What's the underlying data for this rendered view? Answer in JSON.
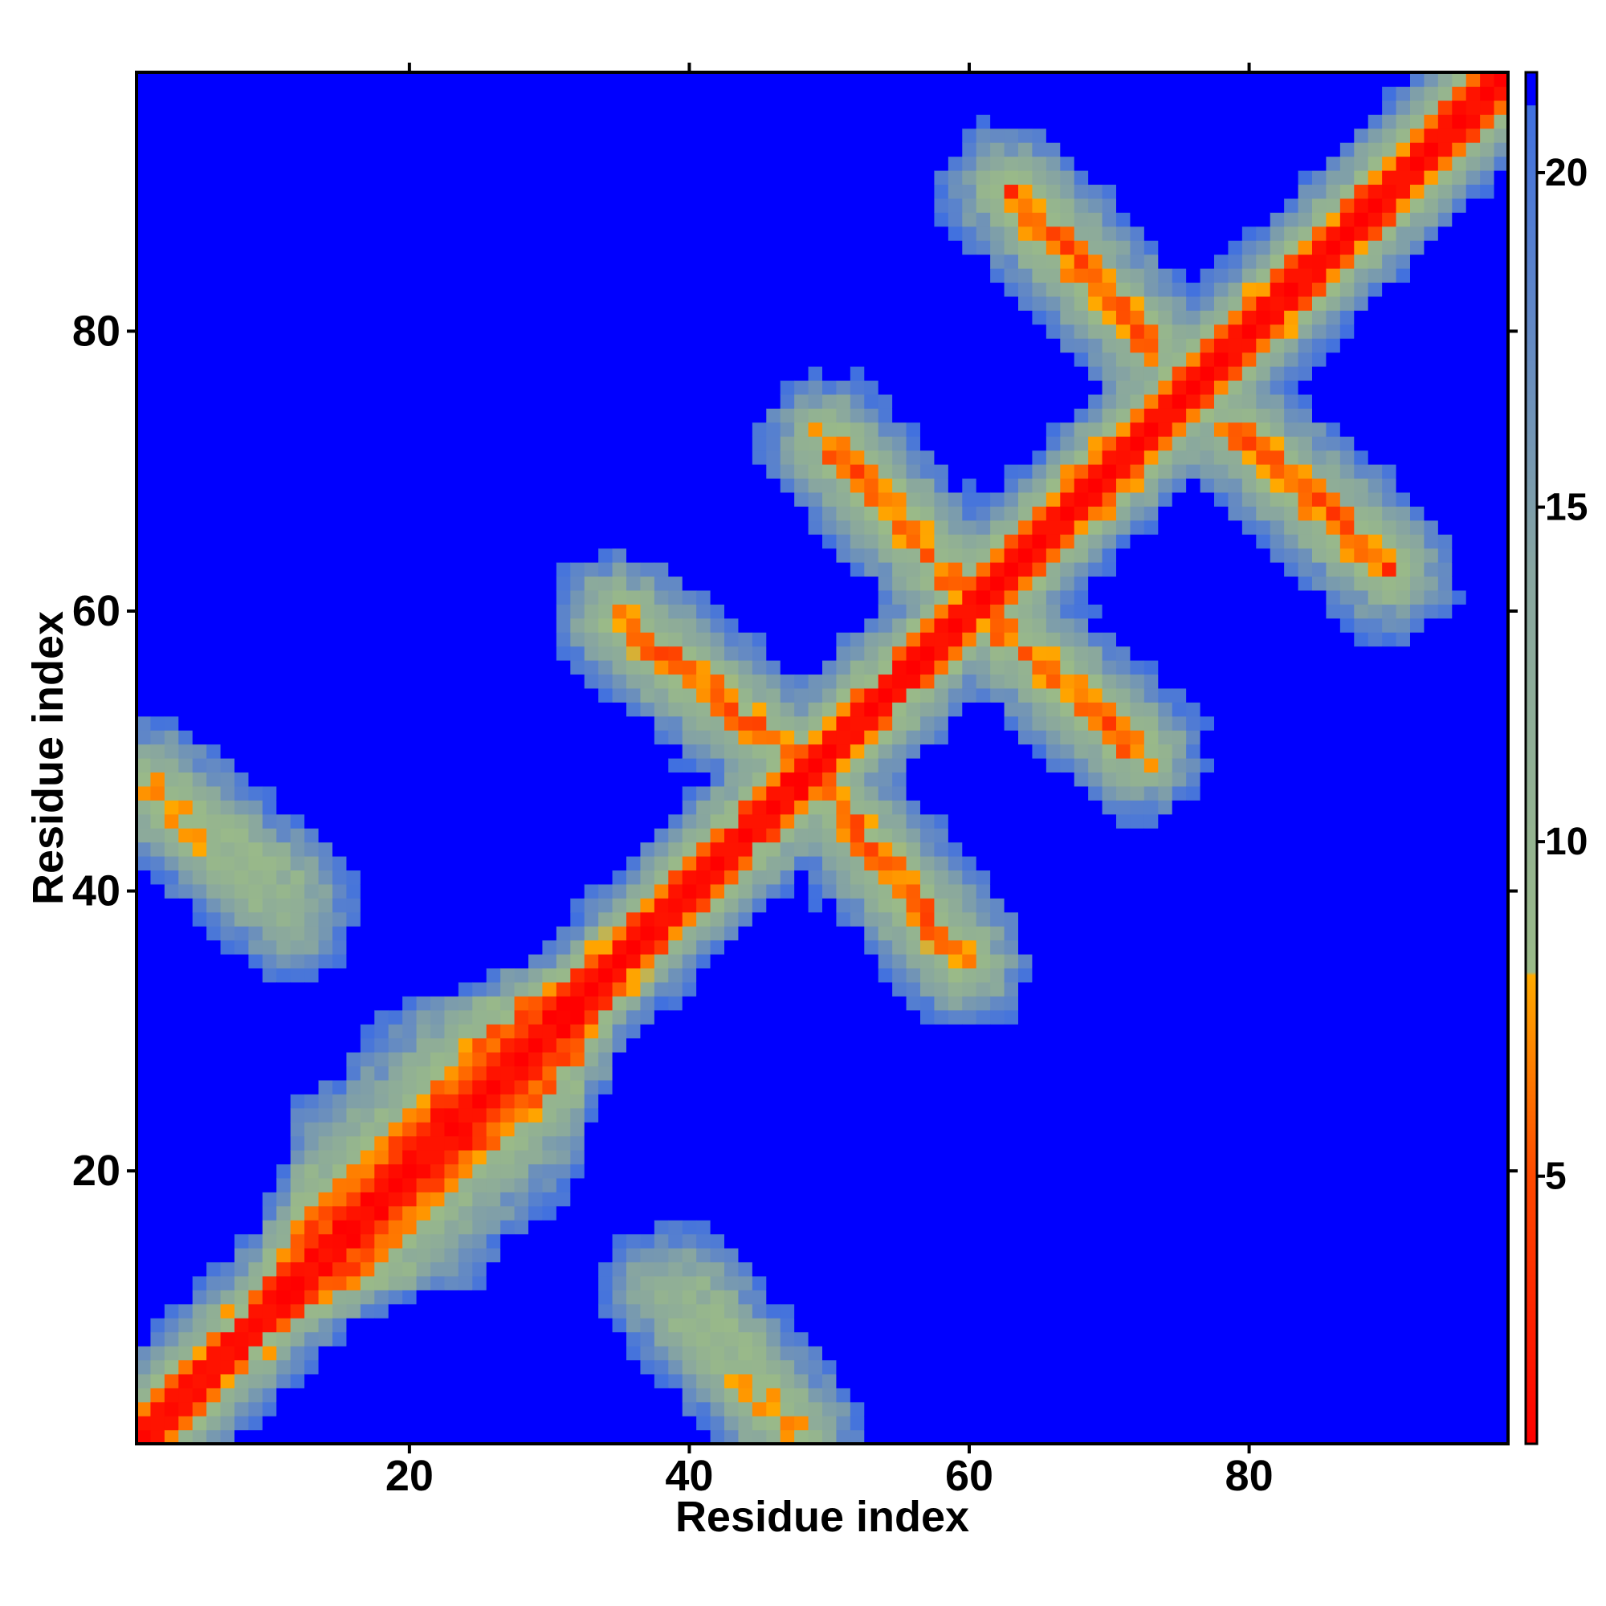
{
  "chart_data": {
    "type": "heatmap",
    "title": "",
    "xlabel": "Residue index",
    "ylabel": "Residue index",
    "n_residues": 98,
    "xlim": [
      1,
      98
    ],
    "ylim": [
      1,
      98
    ],
    "x_ticks": [
      20,
      40,
      60,
      80
    ],
    "y_ticks": [
      20,
      40,
      60,
      80
    ],
    "z_range": [
      1,
      21.5
    ],
    "colorbar": {
      "ticks": [
        5,
        10,
        15,
        20
      ],
      "stops": [
        {
          "value": 1.0,
          "color": "#ff0000"
        },
        {
          "value": 5.0,
          "color": "#ff4a00"
        },
        {
          "value": 8.0,
          "color": "#ffaa00"
        },
        {
          "value": 8.05,
          "color": "#9aba88"
        },
        {
          "value": 14.0,
          "color": "#88a6a0"
        },
        {
          "value": 18.0,
          "color": "#5f86c8"
        },
        {
          "value": 21.0,
          "color": "#4070e0"
        },
        {
          "value": 21.01,
          "color": "#0000ff"
        }
      ]
    },
    "cutoff_color": "#0000ff",
    "description_of_pattern": {
      "diagonal": "self distance, values near 0 (red) along i=j",
      "contact_bands": [
        {
          "from": [
            12,
            12
          ],
          "to": [
            32,
            32
          ],
          "offset": 2,
          "kind": "helix-like widening near diagonal"
        },
        {
          "from": [
            35,
            60
          ],
          "to": [
            48,
            49
          ],
          "kind": "anti-parallel pairing"
        },
        {
          "from": [
            49,
            48
          ],
          "to": [
            59,
            35
          ],
          "kind": "anti-parallel pairing"
        },
        {
          "from": [
            62,
            59
          ],
          "to": [
            72,
            50
          ],
          "kind": "anti-parallel pairing"
        },
        {
          "from": [
            50,
            72
          ],
          "to": [
            59,
            62
          ],
          "kind": "anti-parallel pairing"
        },
        {
          "from": [
            63,
            90
          ],
          "to": [
            73,
            79
          ],
          "kind": "anti-parallel pairing"
        },
        {
          "from": [
            79,
            73
          ],
          "to": [
            90,
            63
          ],
          "kind": "anti-parallel pairing"
        },
        {
          "from": [
            1,
            47
          ],
          "to": [
            12,
            36
          ],
          "kind": "long-range pairing"
        },
        {
          "from": [
            41,
            12
          ],
          "to": [
            48,
            2
          ],
          "kind": "long-range pairing"
        }
      ]
    }
  }
}
